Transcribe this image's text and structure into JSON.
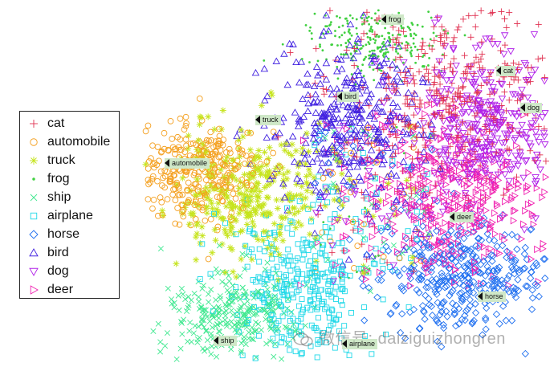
{
  "chart_data": {
    "type": "scatter",
    "title": "",
    "xlabel": "",
    "ylabel": "",
    "legend_position": "left",
    "series": [
      {
        "name": "cat",
        "color": "#e03050",
        "marker": "plus",
        "cluster_label": "cat"
      },
      {
        "name": "automobile",
        "color": "#f4a020",
        "marker": "circle",
        "cluster_label": "automobile"
      },
      {
        "name": "truck",
        "color": "#c6e41c",
        "marker": "asterisk",
        "cluster_label": "truck"
      },
      {
        "name": "frog",
        "color": "#40d040",
        "marker": "dot",
        "cluster_label": "frog"
      },
      {
        "name": "ship",
        "color": "#40e890",
        "marker": "cross",
        "cluster_label": "ship"
      },
      {
        "name": "airplane",
        "color": "#20d8e8",
        "marker": "square",
        "cluster_label": "airplane"
      },
      {
        "name": "horse",
        "color": "#2070f0",
        "marker": "diamond",
        "cluster_label": "horse"
      },
      {
        "name": "bird",
        "color": "#4020e0",
        "marker": "triangle-up",
        "cluster_label": "bird"
      },
      {
        "name": "dog",
        "color": "#b020e8",
        "marker": "triangle-down",
        "cluster_label": "dog"
      },
      {
        "name": "deer",
        "color": "#f020b0",
        "marker": "triangle-right",
        "cluster_label": "deer"
      }
    ]
  },
  "watermark": {
    "text": "微信号: daiziguizhongren",
    "icon": "wechat-icon"
  }
}
